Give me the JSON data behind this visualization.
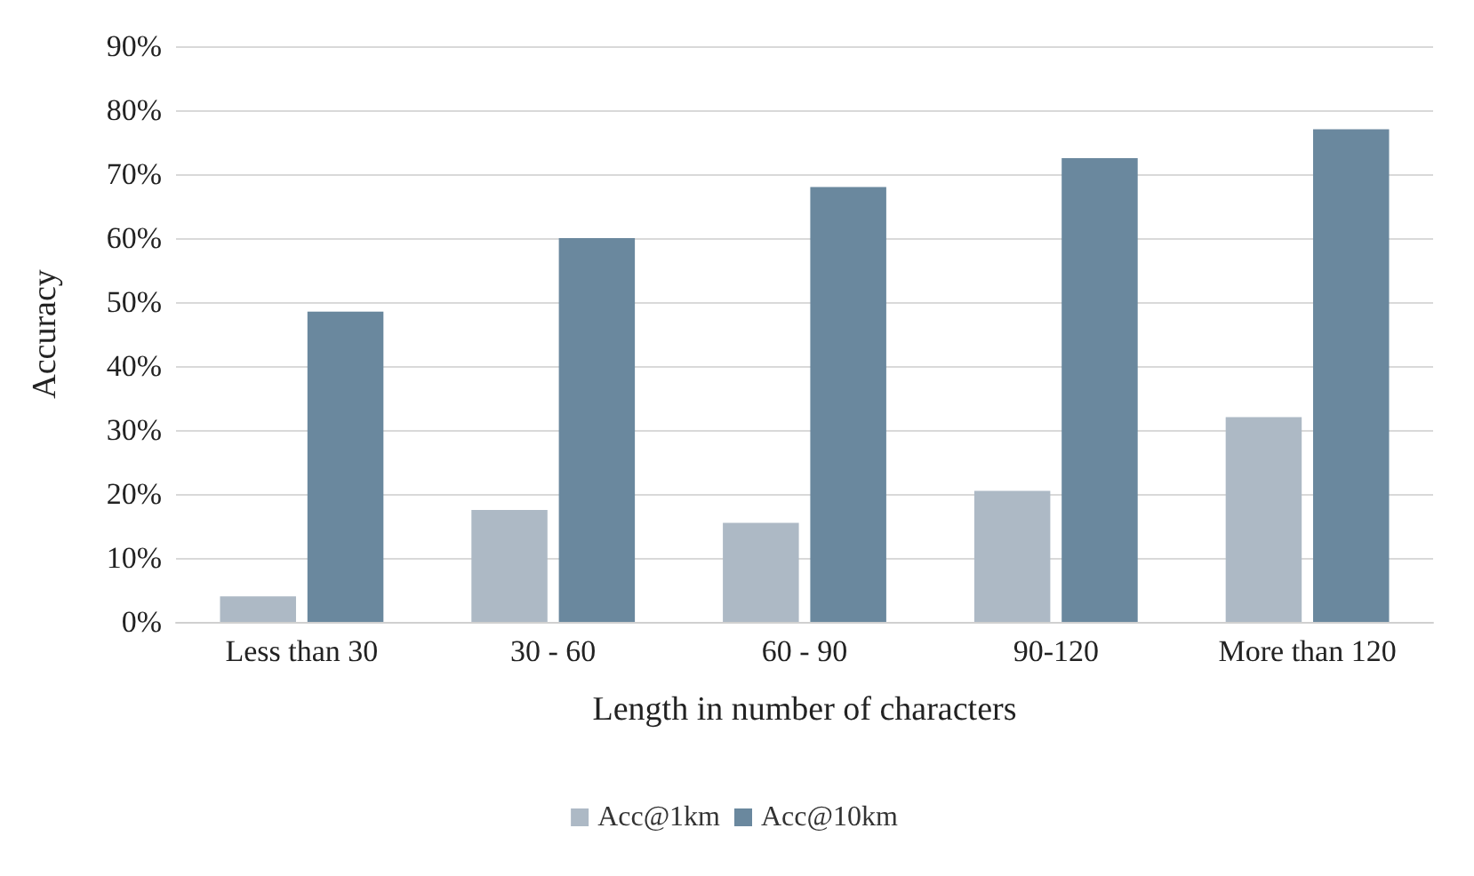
{
  "chart_data": {
    "type": "bar",
    "xlabel": "Length in number of characters",
    "ylabel": "Accuracy",
    "categories": [
      "Less than 30",
      "30 - 60",
      "60 - 90",
      "90-120",
      "More than 120"
    ],
    "series": [
      {
        "name": "Acc@1km",
        "color": "#adb9c5",
        "values": [
          4,
          17.5,
          15.5,
          20.5,
          32
        ]
      },
      {
        "name": "Acc@10km",
        "color": "#6a889e",
        "values": [
          48.5,
          60,
          68,
          72.5,
          77
        ]
      }
    ],
    "ylim": [
      0,
      90
    ],
    "yticks": [
      {
        "value": 0,
        "label": "0%"
      },
      {
        "value": 10,
        "label": "10%"
      },
      {
        "value": 20,
        "label": "20%"
      },
      {
        "value": 30,
        "label": "30%"
      },
      {
        "value": 40,
        "label": "40%"
      },
      {
        "value": 50,
        "label": "50%"
      },
      {
        "value": 60,
        "label": "60%"
      },
      {
        "value": 70,
        "label": "70%"
      },
      {
        "value": 80,
        "label": "80%"
      },
      {
        "value": 90,
        "label": "90%"
      }
    ],
    "grid": "y",
    "legend": "bottom"
  }
}
